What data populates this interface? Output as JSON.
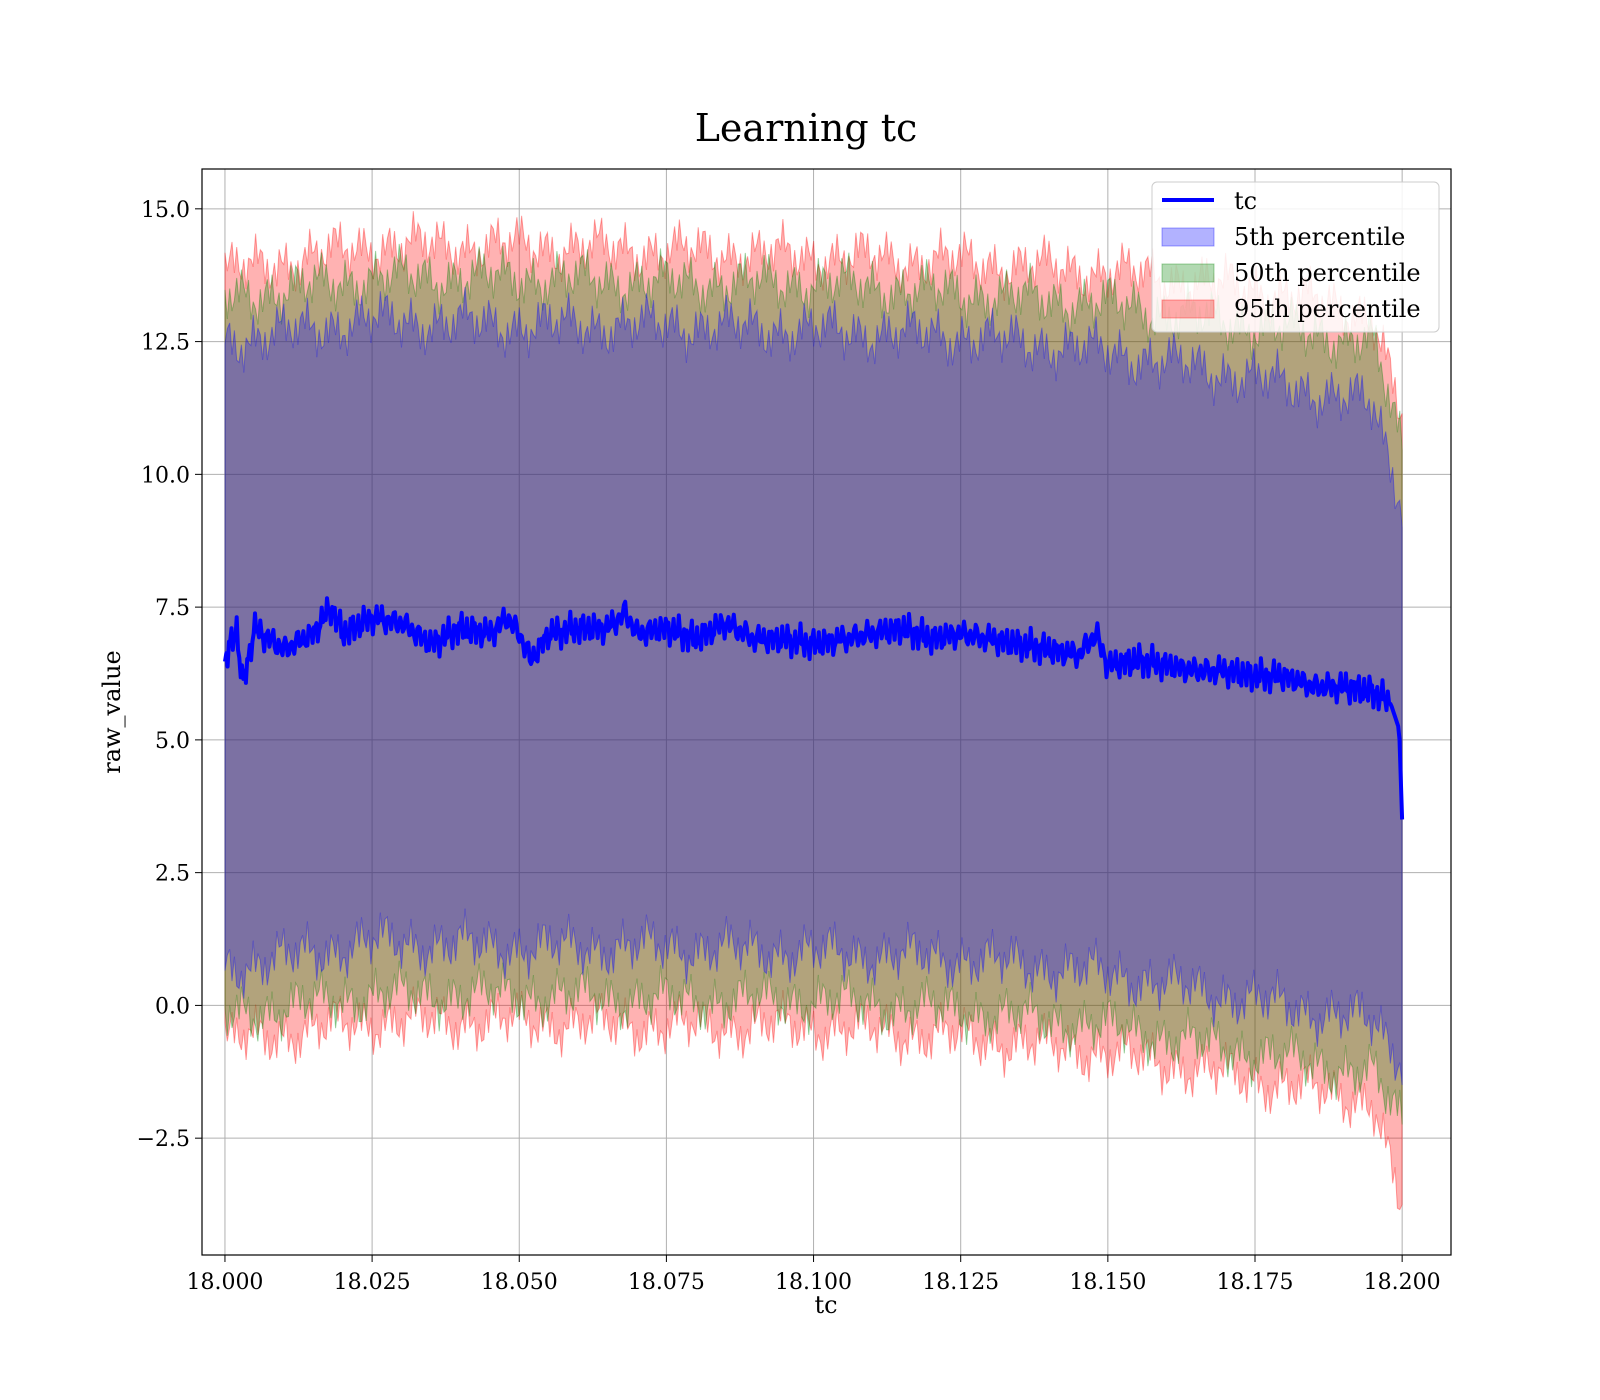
{
  "chart_data": {
    "type": "line",
    "title": "Learning tc",
    "xlabel": "tc",
    "ylabel": "raw_value",
    "xlim": [
      17.9961,
      18.2083
    ],
    "ylim": [
      -4.7,
      15.75
    ],
    "xticks": [
      18.0,
      18.025,
      18.05,
      18.075,
      18.1,
      18.125,
      18.15,
      18.175,
      18.2
    ],
    "xtick_labels": [
      "18.000",
      "18.025",
      "18.050",
      "18.075",
      "18.100",
      "18.125",
      "18.150",
      "18.175",
      "18.200"
    ],
    "yticks": [
      -2.5,
      0.0,
      2.5,
      5.0,
      7.5,
      10.0,
      12.5,
      15.0
    ],
    "ytick_labels": [
      "−2.5",
      "0.0",
      "2.5",
      "5.0",
      "7.5",
      "10.0",
      "12.5",
      "15.0"
    ],
    "grid": true,
    "legend_position": "top-right",
    "line_series": {
      "name": "tc",
      "color": "#0000ff",
      "x": [
        18.0,
        18.002,
        18.003,
        18.005,
        18.01,
        18.015,
        18.018,
        18.02,
        18.025,
        18.03,
        18.035,
        18.04,
        18.045,
        18.048,
        18.05,
        18.052,
        18.055,
        18.06,
        18.065,
        18.068,
        18.07,
        18.075,
        18.08,
        18.085,
        18.09,
        18.095,
        18.1,
        18.105,
        18.11,
        18.115,
        18.12,
        18.125,
        18.13,
        18.135,
        18.14,
        18.145,
        18.148,
        18.15,
        18.155,
        18.16,
        18.165,
        18.17,
        18.175,
        18.18,
        18.185,
        18.19,
        18.195,
        18.198,
        18.1995,
        18.2
      ],
      "y": [
        6.5,
        7.1,
        6.0,
        7.1,
        6.7,
        7.0,
        7.5,
        7.0,
        7.3,
        7.2,
        6.8,
        7.1,
        7.0,
        7.3,
        7.0,
        6.5,
        7.0,
        7.1,
        7.1,
        7.4,
        7.0,
        7.1,
        6.9,
        7.2,
        6.9,
        6.9,
        6.8,
        6.9,
        7.0,
        7.1,
        6.9,
        7.0,
        6.9,
        6.8,
        6.7,
        6.6,
        7.0,
        6.4,
        6.5,
        6.4,
        6.3,
        6.3,
        6.2,
        6.2,
        6.0,
        6.0,
        5.9,
        5.7,
        5.2,
        3.5
      ]
    },
    "band_series": [
      {
        "name": "5th percentile",
        "color": "#0000ff",
        "x": [
          18.0,
          18.025,
          18.05,
          18.075,
          18.1,
          18.125,
          18.15,
          18.175,
          18.195,
          18.2
        ],
        "upper": [
          12.5,
          12.9,
          12.8,
          12.8,
          12.7,
          12.6,
          12.3,
          11.8,
          11.3,
          9.5
        ],
        "lower": [
          0.7,
          1.2,
          1.1,
          1.1,
          1.0,
          0.9,
          0.6,
          0.1,
          -0.3,
          -1.0
        ]
      },
      {
        "name": "50th percentile",
        "color": "#008000",
        "x": [
          18.0,
          18.025,
          18.05,
          18.075,
          18.1,
          18.125,
          18.15,
          18.175,
          18.195,
          18.2
        ],
        "upper": [
          13.3,
          13.7,
          13.7,
          13.6,
          13.6,
          13.4,
          13.2,
          12.8,
          12.5,
          10.5
        ],
        "lower": [
          -0.2,
          0.2,
          0.2,
          0.1,
          0.1,
          -0.1,
          -0.4,
          -0.9,
          -1.3,
          -2.2
        ]
      },
      {
        "name": "95th percentile",
        "color": "#ff0000",
        "x": [
          18.0,
          18.025,
          18.05,
          18.075,
          18.1,
          18.125,
          18.15,
          18.175,
          18.195,
          18.2
        ],
        "upper": [
          13.8,
          14.3,
          14.3,
          14.2,
          14.1,
          14.0,
          13.8,
          13.5,
          13.0,
          11.0
        ],
        "lower": [
          -0.7,
          -0.3,
          -0.3,
          -0.4,
          -0.4,
          -0.6,
          -0.9,
          -1.4,
          -1.8,
          -3.9
        ]
      }
    ]
  }
}
